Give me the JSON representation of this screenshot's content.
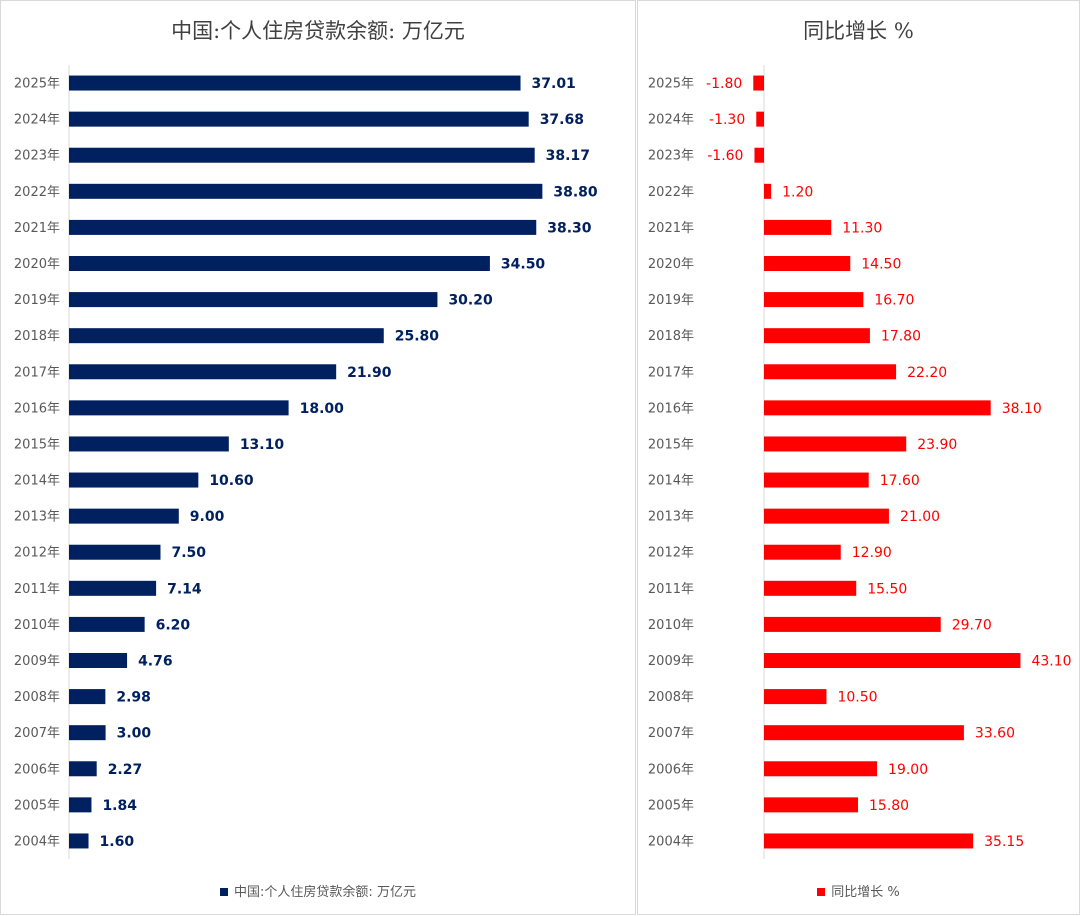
{
  "chart_data": [
    {
      "type": "bar",
      "orientation": "horizontal",
      "title": "中国:个人住房贷款余额: 万亿元",
      "categories": [
        "2025年",
        "2024年",
        "2023年",
        "2022年",
        "2021年",
        "2020年",
        "2019年",
        "2018年",
        "2017年",
        "2016年",
        "2015年",
        "2014年",
        "2013年",
        "2012年",
        "2011年",
        "2010年",
        "2009年",
        "2008年",
        "2007年",
        "2006年",
        "2005年",
        "2004年"
      ],
      "series": [
        {
          "name": "中国:个人住房贷款余额: 万亿元",
          "values": [
            37.01,
            37.68,
            38.17,
            38.8,
            38.3,
            34.5,
            30.2,
            25.8,
            21.9,
            18.0,
            13.1,
            10.6,
            9.0,
            7.5,
            7.14,
            6.2,
            4.76,
            2.98,
            3.0,
            2.27,
            1.84,
            1.6
          ],
          "labels": [
            "37.01",
            "37.68",
            "38.17",
            "38.80",
            "38.30",
            "34.50",
            "30.20",
            "25.80",
            "21.90",
            "18.00",
            "13.10",
            "10.60",
            "9.00",
            "7.50",
            "7.14",
            "6.20",
            "4.76",
            "2.98",
            "3.00",
            "2.27",
            "1.84",
            "1.60"
          ]
        }
      ],
      "xlim": [
        0,
        43
      ],
      "grid": false,
      "legend": "bottom",
      "color": "#002060"
    },
    {
      "type": "bar",
      "orientation": "horizontal",
      "title": "同比增长 %",
      "categories": [
        "2025年",
        "2024年",
        "2023年",
        "2022年",
        "2021年",
        "2020年",
        "2019年",
        "2018年",
        "2017年",
        "2016年",
        "2015年",
        "2014年",
        "2013年",
        "2012年",
        "2011年",
        "2010年",
        "2009年",
        "2008年",
        "2007年",
        "2006年",
        "2005年",
        "2004年"
      ],
      "series": [
        {
          "name": "同比增长 %",
          "values": [
            -1.8,
            -1.3,
            -1.6,
            1.2,
            11.3,
            14.5,
            16.7,
            17.8,
            22.2,
            38.1,
            23.9,
            17.6,
            21.0,
            12.9,
            15.5,
            29.7,
            43.1,
            10.5,
            33.6,
            19.0,
            15.8,
            35.15
          ],
          "labels": [
            "-1.80",
            "-1.30",
            "-1.60",
            "1.20",
            "11.30",
            "14.50",
            "16.70",
            "17.80",
            "22.20",
            "38.10",
            "23.90",
            "17.60",
            "21.00",
            "12.90",
            "15.50",
            "29.70",
            "43.10",
            "10.50",
            "33.60",
            "19.00",
            "15.80",
            "35.15"
          ]
        }
      ],
      "xlim": [
        -2,
        45
      ],
      "grid": false,
      "legend": "bottom",
      "color": "#ff0000"
    }
  ]
}
